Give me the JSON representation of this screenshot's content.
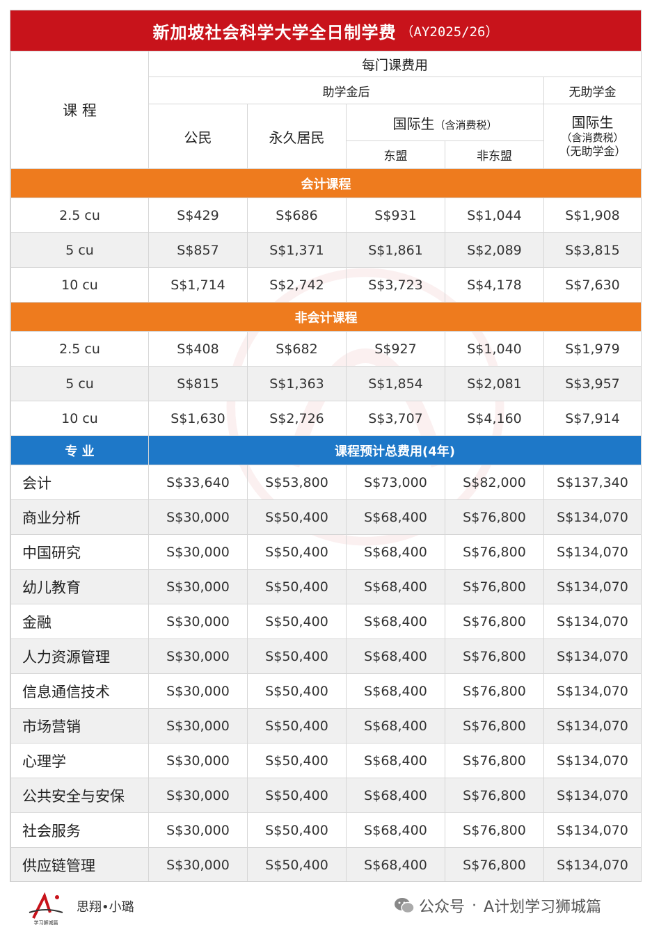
{
  "title": {
    "main": "新加坡社会科学大学全日制学费",
    "sub": "（AY2025/26）"
  },
  "header": {
    "course": "课 程",
    "per_course": "每门课费用",
    "after_grant": "助学金后",
    "no_grant": "无助学金",
    "citizen": "公民",
    "pr": "永久居民",
    "intl": "国际生",
    "incl_gst": "（含消费税）",
    "asean": "东盟",
    "non_asean": "非东盟",
    "intl2": "国际生",
    "incl_gst2": "（含消费税）",
    "no_grant2": "（无助学金）"
  },
  "sections": [
    {
      "label": "会计课程",
      "rows": [
        [
          "2.5 cu",
          "S$429",
          "S$686",
          "S$931",
          "S$1,044",
          "S$1,908"
        ],
        [
          "5 cu",
          "S$857",
          "S$1,371",
          "S$1,861",
          "S$2,089",
          "S$3,815"
        ],
        [
          "10 cu",
          "S$1,714",
          "S$2,742",
          "S$3,723",
          "S$4,178",
          "S$7,630"
        ]
      ]
    },
    {
      "label": "非会计课程",
      "rows": [
        [
          "2.5 cu",
          "S$408",
          "S$682",
          "S$927",
          "S$1,040",
          "S$1,979"
        ],
        [
          "5 cu",
          "S$815",
          "S$1,363",
          "S$1,854",
          "S$2,081",
          "S$3,957"
        ],
        [
          "10 cu",
          "S$1,630",
          "S$2,726",
          "S$3,707",
          "S$4,160",
          "S$7,914"
        ]
      ]
    }
  ],
  "totals": {
    "major_label": "专 业",
    "label": "课程预计总费用(4年)",
    "rows": [
      [
        "会计",
        "S$33,640",
        "S$53,800",
        "S$73,000",
        "S$82,000",
        "S$137,340"
      ],
      [
        "商业分析",
        "S$30,000",
        "S$50,400",
        "S$68,400",
        "S$76,800",
        "S$134,070"
      ],
      [
        "中国研究",
        "S$30,000",
        "S$50,400",
        "S$68,400",
        "S$76,800",
        "S$134,070"
      ],
      [
        "幼儿教育",
        "S$30,000",
        "S$50,400",
        "S$68,400",
        "S$76,800",
        "S$134,070"
      ],
      [
        "金融",
        "S$30,000",
        "S$50,400",
        "S$68,400",
        "S$76,800",
        "S$134,070"
      ],
      [
        "人力资源管理",
        "S$30,000",
        "S$50,400",
        "S$68,400",
        "S$76,800",
        "S$134,070"
      ],
      [
        "信息通信技术",
        "S$30,000",
        "S$50,400",
        "S$68,400",
        "S$76,800",
        "S$134,070"
      ],
      [
        "市场营销",
        "S$30,000",
        "S$50,400",
        "S$68,400",
        "S$76,800",
        "S$134,070"
      ],
      [
        "心理学",
        "S$30,000",
        "S$50,400",
        "S$68,400",
        "S$76,800",
        "S$134,070"
      ],
      [
        "公共安全与安保",
        "S$30,000",
        "S$50,400",
        "S$68,400",
        "S$76,800",
        "S$134,070"
      ],
      [
        "社会服务",
        "S$30,000",
        "S$50,400",
        "S$68,400",
        "S$76,800",
        "S$134,070"
      ],
      [
        "供应链管理",
        "S$30,000",
        "S$50,400",
        "S$68,400",
        "S$76,800",
        "S$134,070"
      ]
    ]
  },
  "footer": {
    "logo_text": "学习狮城篇",
    "brand": "思翔•小璐",
    "wechat_icon": "wechat-icon",
    "wechat_prefix": "公众号",
    "wechat_dot": "·",
    "wechat_name": "A计划学习狮城篇"
  },
  "colors": {
    "title_bg": "#c8131b",
    "section_bg": "#ee7b1e",
    "totals_bg": "#1e78c8",
    "alt_row_bg": "#f0f0f0"
  }
}
